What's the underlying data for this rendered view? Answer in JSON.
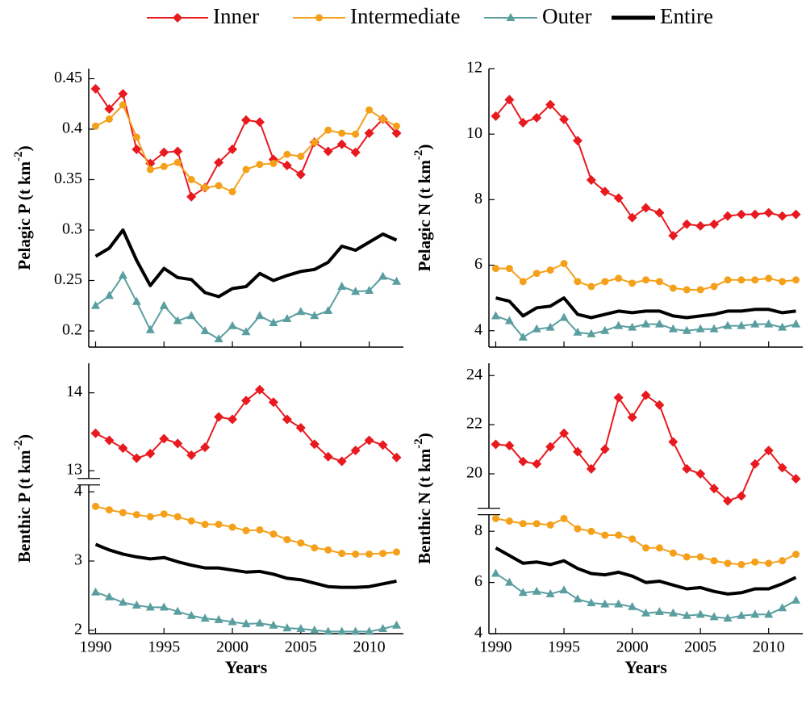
{
  "chart_data": [
    {
      "type": "line",
      "ylabel": [
        "Pelagic P (t km",
        "-2",
        ")"
      ],
      "x": [
        1990,
        1991,
        1992,
        1993,
        1994,
        1995,
        1996,
        1997,
        1998,
        1999,
        2000,
        2001,
        2002,
        2003,
        2004,
        2005,
        2006,
        2007,
        2008,
        2009,
        2010,
        2011,
        2012
      ],
      "xlim": [
        1989.5,
        2012.5
      ],
      "xticks": [
        1990,
        1995,
        2000,
        2005,
        2010
      ],
      "ylim": [
        0.184,
        0.46
      ],
      "yticks": [
        0.2,
        0.25,
        0.3,
        0.35,
        0.4,
        0.45
      ],
      "series": [
        {
          "name": "Inner",
          "color": "#e8191f",
          "marker": "diamond",
          "values": [
            0.44,
            0.42,
            0.435,
            0.38,
            0.366,
            0.377,
            0.378,
            0.333,
            0.342,
            0.367,
            0.38,
            0.409,
            0.407,
            0.37,
            0.364,
            0.355,
            0.387,
            0.378,
            0.385,
            0.377,
            0.396,
            0.41,
            0.396
          ]
        },
        {
          "name": "Intermediate",
          "color": "#f5a01a",
          "marker": "circle",
          "values": [
            0.403,
            0.41,
            0.424,
            0.392,
            0.36,
            0.363,
            0.367,
            0.35,
            0.342,
            0.344,
            0.338,
            0.36,
            0.365,
            0.366,
            0.375,
            0.373,
            0.387,
            0.399,
            0.396,
            0.395,
            0.419,
            0.41,
            0.403
          ]
        },
        {
          "name": "Outer",
          "color": "#5a9ea0",
          "marker": "triangle",
          "values": [
            0.225,
            0.235,
            0.255,
            0.229,
            0.201,
            0.225,
            0.21,
            0.215,
            0.2,
            0.192,
            0.205,
            0.199,
            0.215,
            0.208,
            0.212,
            0.219,
            0.215,
            0.22,
            0.244,
            0.239,
            0.24,
            0.254,
            0.249
          ]
        },
        {
          "name": "Entire",
          "color": "#000000",
          "marker": "none",
          "values": [
            0.274,
            0.282,
            0.3,
            0.27,
            0.245,
            0.262,
            0.253,
            0.251,
            0.238,
            0.234,
            0.242,
            0.244,
            0.257,
            0.25,
            0.255,
            0.259,
            0.261,
            0.268,
            0.284,
            0.28,
            0.288,
            0.296,
            0.29
          ]
        }
      ]
    },
    {
      "type": "line",
      "ylabel": [
        "Pelagic N (t km",
        "-2",
        ")"
      ],
      "x": [
        1990,
        1991,
        1992,
        1993,
        1994,
        1995,
        1996,
        1997,
        1998,
        1999,
        2000,
        2001,
        2002,
        2003,
        2004,
        2005,
        2006,
        2007,
        2008,
        2009,
        2010,
        2011,
        2012
      ],
      "xlim": [
        1989.5,
        2012.5
      ],
      "xticks": [
        1990,
        1995,
        2000,
        2005,
        2010
      ],
      "ylim": [
        3.5,
        12
      ],
      "yticks": [
        4,
        6,
        8,
        10,
        12
      ],
      "series": [
        {
          "name": "Inner",
          "color": "#e8191f",
          "marker": "diamond",
          "values": [
            10.55,
            11.05,
            10.35,
            10.5,
            10.9,
            10.45,
            9.8,
            8.6,
            8.25,
            8.05,
            7.45,
            7.75,
            7.6,
            6.9,
            7.25,
            7.2,
            7.25,
            7.5,
            7.55,
            7.55,
            7.6,
            7.5,
            7.55
          ]
        },
        {
          "name": "Intermediate",
          "color": "#f5a01a",
          "marker": "circle",
          "values": [
            5.9,
            5.9,
            5.5,
            5.75,
            5.85,
            6.05,
            5.5,
            5.35,
            5.5,
            5.6,
            5.45,
            5.55,
            5.5,
            5.3,
            5.25,
            5.25,
            5.35,
            5.55,
            5.55,
            5.55,
            5.6,
            5.5,
            5.55
          ]
        },
        {
          "name": "Outer",
          "color": "#5a9ea0",
          "marker": "triangle",
          "values": [
            4.45,
            4.3,
            3.8,
            4.05,
            4.1,
            4.4,
            3.95,
            3.9,
            4.0,
            4.15,
            4.1,
            4.2,
            4.2,
            4.05,
            4.0,
            4.05,
            4.05,
            4.15,
            4.15,
            4.2,
            4.2,
            4.1,
            4.2
          ]
        },
        {
          "name": "Entire",
          "color": "#000000",
          "marker": "none",
          "values": [
            5.0,
            4.9,
            4.45,
            4.7,
            4.75,
            5.0,
            4.5,
            4.4,
            4.5,
            4.6,
            4.55,
            4.6,
            4.6,
            4.45,
            4.4,
            4.45,
            4.5,
            4.6,
            4.6,
            4.65,
            4.65,
            4.55,
            4.6
          ]
        }
      ]
    },
    {
      "type": "line",
      "ylabel": [
        "Benthic P (t km",
        "-2",
        ")"
      ],
      "xlabel": "Years",
      "x": [
        1990,
        1991,
        1992,
        1993,
        1994,
        1995,
        1996,
        1997,
        1998,
        1999,
        2000,
        2001,
        2002,
        2003,
        2004,
        2005,
        2006,
        2007,
        2008,
        2009,
        2010,
        2011,
        2012
      ],
      "xlim": [
        1989.5,
        2012.5
      ],
      "xticks": [
        1990,
        1995,
        2000,
        2005,
        2010
      ],
      "ylim_segments": [
        [
          1.95,
          4.1
        ],
        [
          12.9,
          14.38
        ]
      ],
      "yticks": [
        2,
        3,
        4,
        13,
        14
      ],
      "series": [
        {
          "name": "Inner",
          "color": "#e8191f",
          "marker": "diamond",
          "values": [
            13.48,
            13.39,
            13.29,
            13.16,
            13.22,
            13.41,
            13.35,
            13.2,
            13.3,
            13.69,
            13.66,
            13.9,
            14.04,
            13.88,
            13.66,
            13.55,
            13.34,
            13.18,
            13.12,
            13.26,
            13.39,
            13.33,
            13.17
          ]
        },
        {
          "name": "Intermediate",
          "color": "#f5a01a",
          "marker": "circle",
          "values": [
            3.79,
            3.74,
            3.7,
            3.67,
            3.64,
            3.68,
            3.64,
            3.58,
            3.53,
            3.53,
            3.49,
            3.44,
            3.45,
            3.39,
            3.31,
            3.26,
            3.19,
            3.16,
            3.11,
            3.1,
            3.1,
            3.11,
            3.13
          ]
        },
        {
          "name": "Outer",
          "color": "#5a9ea0",
          "marker": "triangle",
          "values": [
            2.55,
            2.48,
            2.4,
            2.36,
            2.33,
            2.33,
            2.27,
            2.21,
            2.17,
            2.15,
            2.12,
            2.09,
            2.1,
            2.07,
            2.03,
            2.02,
            2.0,
            1.98,
            1.98,
            1.98,
            1.98,
            2.02,
            2.07
          ]
        },
        {
          "name": "Entire",
          "color": "#000000",
          "marker": "none",
          "values": [
            3.24,
            3.16,
            3.1,
            3.06,
            3.03,
            3.05,
            2.99,
            2.94,
            2.9,
            2.9,
            2.87,
            2.84,
            2.85,
            2.81,
            2.75,
            2.73,
            2.68,
            2.63,
            2.62,
            2.62,
            2.63,
            2.67,
            2.71
          ]
        }
      ]
    },
    {
      "type": "line",
      "ylabel": [
        "Benthic N (t km",
        "-2",
        ")"
      ],
      "xlabel": "Years",
      "x": [
        1990,
        1991,
        1992,
        1993,
        1994,
        1995,
        1996,
        1997,
        1998,
        1999,
        2000,
        2001,
        2002,
        2003,
        2004,
        2005,
        2006,
        2007,
        2008,
        2009,
        2010,
        2011,
        2012
      ],
      "xlim": [
        1989.5,
        2012.5
      ],
      "xticks": [
        1990,
        1995,
        2000,
        2005,
        2010
      ],
      "ylim_segments": [
        [
          4,
          8.65
        ],
        [
          18.6,
          24.5
        ]
      ],
      "yticks": [
        4,
        6,
        8,
        20,
        22,
        24
      ],
      "series": [
        {
          "name": "Inner",
          "color": "#e8191f",
          "marker": "diamond",
          "values": [
            21.2,
            21.15,
            20.5,
            20.4,
            21.1,
            21.65,
            20.9,
            20.2,
            21.0,
            23.1,
            22.3,
            23.2,
            22.8,
            21.3,
            20.2,
            20.0,
            19.4,
            18.9,
            19.1,
            20.4,
            20.95,
            20.25,
            19.8
          ]
        },
        {
          "name": "Intermediate",
          "color": "#f5a01a",
          "marker": "circle",
          "values": [
            8.5,
            8.4,
            8.3,
            8.3,
            8.25,
            8.5,
            8.1,
            8.0,
            7.85,
            7.85,
            7.7,
            7.35,
            7.35,
            7.15,
            7.0,
            7.0,
            6.85,
            6.75,
            6.7,
            6.8,
            6.75,
            6.85,
            7.1
          ]
        },
        {
          "name": "Outer",
          "color": "#5a9ea0",
          "marker": "triangle",
          "values": [
            6.35,
            6.0,
            5.6,
            5.65,
            5.55,
            5.7,
            5.35,
            5.2,
            5.15,
            5.15,
            5.05,
            4.8,
            4.85,
            4.8,
            4.7,
            4.75,
            4.65,
            4.6,
            4.7,
            4.75,
            4.75,
            5.0,
            5.3
          ]
        },
        {
          "name": "Entire",
          "color": "#000000",
          "marker": "none",
          "values": [
            7.35,
            7.05,
            6.75,
            6.8,
            6.7,
            6.85,
            6.55,
            6.35,
            6.3,
            6.4,
            6.25,
            6.0,
            6.05,
            5.9,
            5.75,
            5.8,
            5.65,
            5.55,
            5.6,
            5.75,
            5.75,
            5.95,
            6.2
          ]
        }
      ]
    }
  ]
}
